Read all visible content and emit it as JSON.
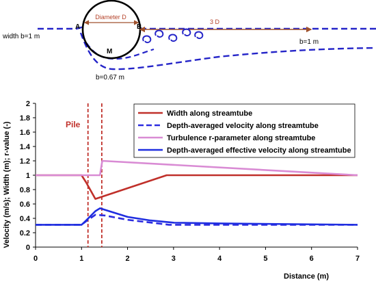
{
  "schematic": {
    "diameter_label": "Diameter D",
    "point_a": "A",
    "point_b": "B",
    "point_m": "M",
    "length_label": "3 D",
    "width_in_label": "width b=1 m",
    "width_out_label": "b=1 m",
    "width_min_label": "b=0.67 m"
  },
  "colors": {
    "width": "#c0302a",
    "velocity": "#2b2be0",
    "turbulence": "#d98bd4",
    "effective": "#1f2ee0",
    "pile": "#c0302a",
    "streamline": "#2424c8",
    "annotation": "#b5432a"
  },
  "chart_data": {
    "type": "line",
    "xlabel": "Distance (m)",
    "ylabel": "Velocity (m/s); Width (m); r-value (-)",
    "xlim": [
      0,
      7
    ],
    "ylim": [
      0,
      2
    ],
    "xticks": [
      "0",
      "1",
      "2",
      "3",
      "4",
      "5",
      "6",
      "7"
    ],
    "yticks": [
      "0",
      "0.2",
      "0.4",
      "0.6",
      "0.8",
      "1",
      "1.2",
      "1.4",
      "1.6",
      "1.8",
      "2"
    ],
    "grid": "none",
    "legend_position": "top-right",
    "annotation": "Pile",
    "pile_lines": [
      1.14,
      1.44
    ],
    "series": [
      {
        "name": "Width along streamtube",
        "style": "solid",
        "x": [
          0,
          1.0,
          1.1,
          1.3,
          2.85,
          7.0
        ],
        "y": [
          1,
          1,
          0.9,
          0.67,
          1,
          1
        ]
      },
      {
        "name": "Depth-averaged velocity along streamtube",
        "style": "dashed",
        "x": [
          0,
          1.0,
          1.1,
          1.3,
          1.5,
          2.0,
          2.9,
          4.0,
          7.0
        ],
        "y": [
          0.31,
          0.31,
          0.36,
          0.45,
          0.44,
          0.38,
          0.31,
          0.31,
          0.31
        ]
      },
      {
        "name": "Turbulence r-parameter along streamtube",
        "style": "solid",
        "x": [
          0,
          1.4,
          1.45,
          7.0
        ],
        "y": [
          1,
          1,
          1.2,
          1.0
        ]
      },
      {
        "name": "Depth-averaged effective velocity along streamtube",
        "style": "solid",
        "x": [
          0,
          1.0,
          1.1,
          1.3,
          1.4,
          1.6,
          2.0,
          2.5,
          3.0,
          4.0,
          7.0
        ],
        "y": [
          0.31,
          0.31,
          0.37,
          0.5,
          0.54,
          0.5,
          0.42,
          0.37,
          0.34,
          0.33,
          0.31
        ]
      }
    ]
  }
}
